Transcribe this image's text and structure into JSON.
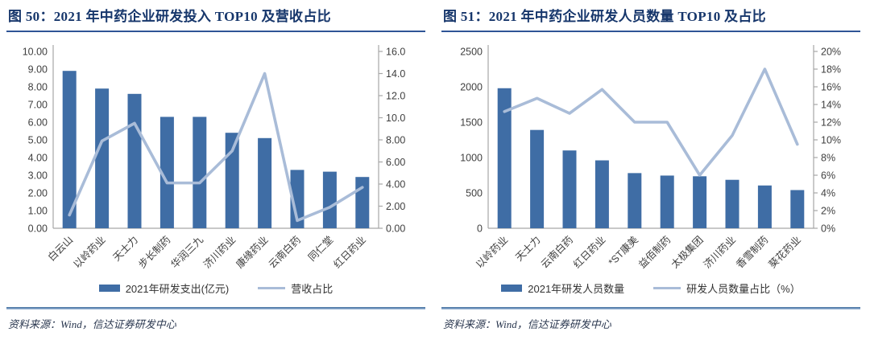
{
  "page": {
    "background": "#ffffff"
  },
  "style": {
    "title_color": "#16366b",
    "title_underline_color": "#2f5496",
    "axis_color": "#a6a6a6",
    "tick_label_color": "#3f3f3f",
    "source_rule_color": "#44719f"
  },
  "chart_data": [
    {
      "type": "bar+line",
      "title": "图 50：2021 年中药企业研发投入 TOP10 及营收占比",
      "source": "资料来源：Wind，信达证券研发中心",
      "categories": [
        "白云山",
        "以岭药业",
        "天士力",
        "步长制药",
        "华润三九",
        "济川药业",
        "康缘药业",
        "云南白药",
        "同仁堂",
        "红日药业"
      ],
      "series": [
        {
          "name": "2021年研发支出(亿元)",
          "type": "bar",
          "axis": "left",
          "color": "#3f6da5",
          "values": [
            8.9,
            7.9,
            7.6,
            6.3,
            6.3,
            5.4,
            5.1,
            3.3,
            3.2,
            2.9
          ]
        },
        {
          "name": "营收占比",
          "type": "line",
          "axis": "right",
          "color": "#a9bcd8",
          "values": [
            1.2,
            7.9,
            9.5,
            4.1,
            4.1,
            7.0,
            14.0,
            0.7,
            1.9,
            3.7
          ]
        }
      ],
      "left_axis": {
        "min": 0,
        "max": 10,
        "step": 1,
        "tick_labels": [
          "0.00",
          "1.00",
          "2.00",
          "3.00",
          "4.00",
          "5.00",
          "6.00",
          "7.00",
          "8.00",
          "9.00",
          "10.00"
        ]
      },
      "right_axis": {
        "min": 0,
        "max": 16,
        "step": 2,
        "tick_labels": [
          "0.00",
          "2.00",
          "4.00",
          "6.00",
          "8.00",
          "10.0",
          "12.0",
          "14.0",
          "16.0"
        ]
      },
      "legend_position": "bottom",
      "grid": false
    },
    {
      "type": "bar+line",
      "title": "图 51：2021 年中药企业研发人员数量 TOP10 及占比",
      "source": "资料来源：Wind，信达证券研发中心",
      "categories": [
        "以岭药业",
        "天士力",
        "云南白药",
        "红日药业",
        "*ST康美",
        "益佰制药",
        "太极集团",
        "济川药业",
        "香雪制药",
        "葵花药业"
      ],
      "series": [
        {
          "name": "2021年研发人员数量",
          "type": "bar",
          "axis": "left",
          "color": "#3f6da5",
          "values": [
            1980,
            1390,
            1100,
            960,
            780,
            745,
            735,
            685,
            605,
            540
          ]
        },
        {
          "name": "研发人员数量占比（%）",
          "type": "line",
          "axis": "right",
          "color": "#a9bcd8",
          "values": [
            13.2,
            14.7,
            13.0,
            15.7,
            12.0,
            12.0,
            6.0,
            10.5,
            18.0,
            9.5
          ]
        }
      ],
      "left_axis": {
        "min": 0,
        "max": 2500,
        "step": 500,
        "tick_labels": [
          "0",
          "500",
          "1000",
          "1500",
          "2000",
          "2500"
        ]
      },
      "right_axis": {
        "min": 0,
        "max": 20,
        "step": 2,
        "tick_labels": [
          "0%",
          "2%",
          "4%",
          "6%",
          "8%",
          "10%",
          "12%",
          "14%",
          "16%",
          "18%",
          "20%"
        ]
      },
      "legend_position": "bottom",
      "grid": false
    }
  ]
}
